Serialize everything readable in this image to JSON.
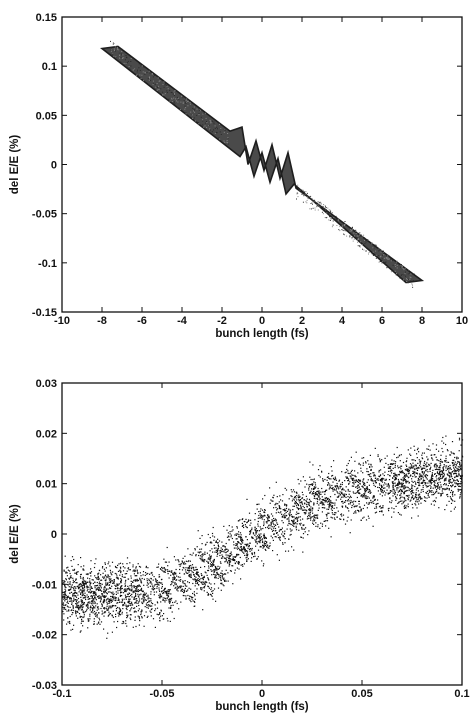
{
  "chart_data": [
    {
      "type": "scatter",
      "title": "",
      "xlabel": "bunch length (fs)",
      "ylabel": "del E/E (%)",
      "xlim": [
        -10,
        10
      ],
      "ylim": [
        -0.15,
        0.15
      ],
      "xticks": [
        -10,
        -8,
        -6,
        -4,
        -2,
        0,
        2,
        4,
        6,
        8,
        10
      ],
      "yticks": [
        -0.15,
        -0.1,
        -0.05,
        0,
        0.05,
        0.1,
        0.15
      ],
      "xtick_labels": [
        "-10",
        "-8",
        "-6",
        "-4",
        "-2",
        "0",
        "2",
        "4",
        "6",
        "8",
        "10"
      ],
      "ytick_labels": [
        "-0.15",
        "-0.1",
        "-0.05",
        "0",
        "0.05",
        "0.1",
        "0.15"
      ],
      "series": [
        {
          "upper_edge": {
            "x": [
              -7.2,
              -1.6,
              -1.0,
              -0.7,
              -0.3,
              0.1,
              0.5,
              0.9,
              1.3,
              1.7,
              8.0
            ],
            "y": [
              0.12,
              0.034,
              0.038,
              0.0,
              0.024,
              -0.006,
              0.02,
              -0.014,
              0.012,
              -0.024,
              -0.118
            ]
          },
          "lower_edge": {
            "x": [
              -8.0,
              -1.6,
              -1.1,
              -0.8,
              -0.4,
              0.0,
              0.4,
              0.8,
              1.2,
              1.6,
              7.2
            ],
            "y": [
              0.118,
              0.016,
              0.008,
              0.018,
              -0.012,
              0.012,
              -0.018,
              0.006,
              -0.03,
              -0.02,
              -0.12
            ]
          },
          "color": "#4a4a4a"
        }
      ]
    },
    {
      "type": "scatter",
      "title": "",
      "xlabel": "bunch length (fs)",
      "ylabel": "del E/E (%)",
      "xlim": [
        -0.1,
        0.1
      ],
      "ylim": [
        -0.03,
        0.03
      ],
      "xticks": [
        -0.1,
        -0.05,
        0,
        0.05,
        0.1
      ],
      "yticks": [
        -0.03,
        -0.02,
        -0.01,
        0,
        0.01,
        0.02,
        0.03
      ],
      "xtick_labels": [
        "-0.1",
        "-0.05",
        "0",
        "0.05",
        "0.1"
      ],
      "ytick_labels": [
        "-0.03",
        "-0.02",
        "-0.01",
        "0",
        "0.01",
        "0.02",
        "0.03"
      ],
      "series": [
        {
          "center_line": {
            "x": [
              -0.1,
              -0.08,
              -0.06,
              -0.05,
              -0.04,
              -0.03,
              -0.02,
              -0.01,
              0.0,
              0.01,
              0.02,
              0.03,
              0.04,
              0.05,
              0.06,
              0.08,
              0.1
            ],
            "y": [
              -0.012,
              -0.012,
              -0.0115,
              -0.011,
              -0.009,
              -0.007,
              -0.005,
              -0.002,
              0.001,
              0.003,
              0.005,
              0.007,
              0.008,
              0.009,
              0.01,
              0.011,
              0.012
            ]
          },
          "spread": 0.009,
          "color": "#111111"
        }
      ]
    }
  ]
}
